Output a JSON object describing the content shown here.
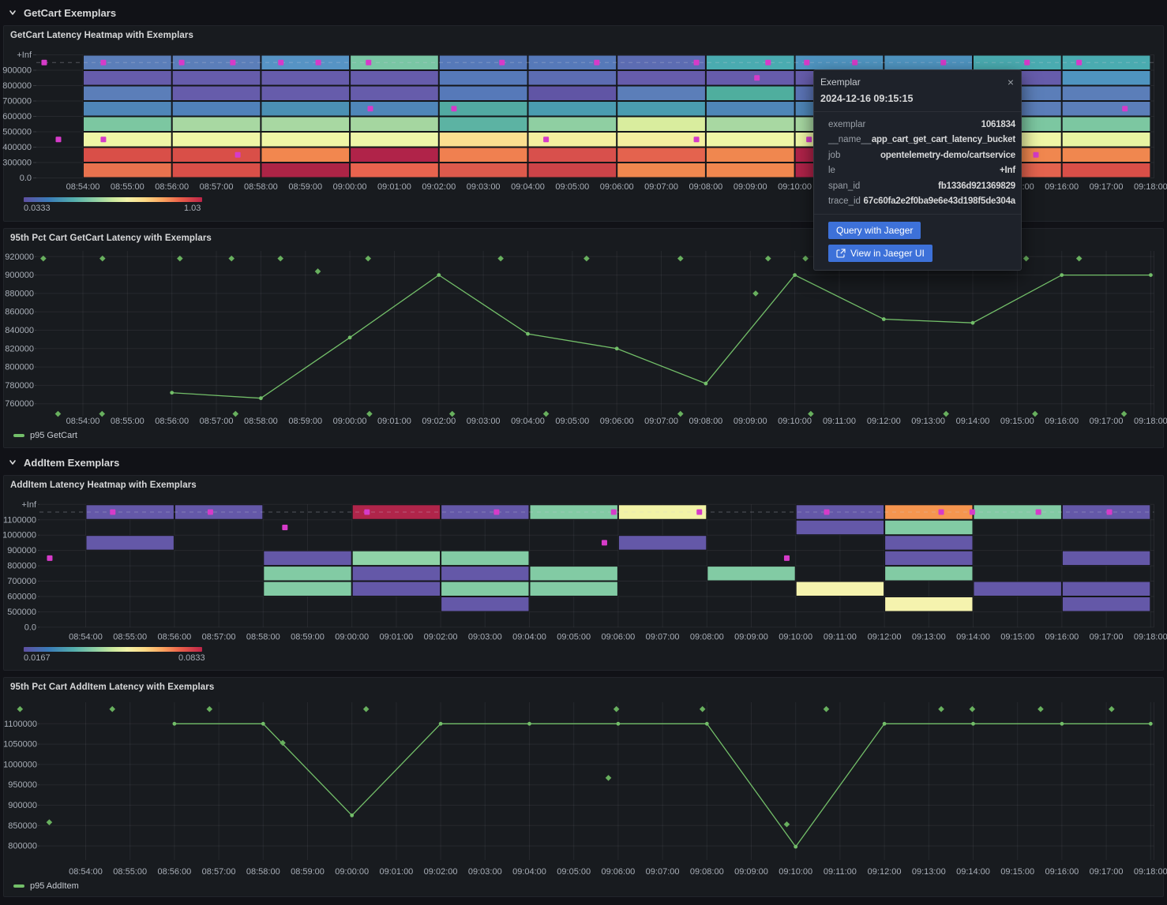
{
  "sections": [
    {
      "label": "GetCart Exemplars"
    },
    {
      "label": "AddItem Exemplars"
    }
  ],
  "panels": [
    {
      "title": "GetCart Latency Heatmap with Exemplars"
    },
    {
      "title": "95th Pct Cart GetCart Latency with Exemplars"
    },
    {
      "title": "AddItem Latency Heatmap with Exemplars"
    },
    {
      "title": "95th Pct Cart AddItem Latency with Exemplars"
    }
  ],
  "colors": {
    "accent_blue": "#3d71d9",
    "exemplar_magenta": "#d63bc9",
    "series_green": "#73bf69",
    "diamond_green": "#68b05e"
  },
  "tooltip": {
    "title": "Exemplar",
    "timestamp": "2024-12-16 09:15:15",
    "rows": [
      {
        "label": "exemplar",
        "value": "1061834"
      },
      {
        "label": "__name__",
        "value": "app_cart_get_cart_latency_bucket"
      },
      {
        "label": "job",
        "value": "opentelemetry-demo/cartservice"
      },
      {
        "label": "le",
        "value": "+Inf"
      },
      {
        "label": "span_id",
        "value": "fb1336d921369829"
      },
      {
        "label": "trace_id",
        "value": "67c60fa2e2f0ba9e6e43d198f5de304a"
      }
    ],
    "buttons": [
      {
        "label": "Query with Jaeger"
      },
      {
        "label": "View in Jaeger UI"
      }
    ]
  },
  "chart_data": [
    {
      "type": "heatmap",
      "title": "GetCart Latency Heatmap with Exemplars",
      "x_tick_labels": [
        "08:54:00",
        "08:55:00",
        "08:56:00",
        "08:57:00",
        "08:58:00",
        "08:59:00",
        "09:00:00",
        "09:01:00",
        "09:02:00",
        "09:03:00",
        "09:04:00",
        "09:05:00",
        "09:06:00",
        "09:07:00",
        "09:08:00",
        "09:09:00",
        "09:10:00",
        "09:11:00",
        "09:12:00",
        "09:13:00",
        "09:14:00",
        "09:15:00",
        "09:16:00",
        "09:17:00",
        "09:18:00"
      ],
      "y_tick_labels": [
        "0.0",
        "300000",
        "400000",
        "500000",
        "600000",
        "700000",
        "800000",
        "900000",
        "+Inf"
      ],
      "columns": [
        {
          "start_min": 0,
          "colors_top_to_bottom": [
            "#5b7eb9",
            "#665cab",
            "#5b7eb9",
            "#4f86b8",
            "#7cc7a1",
            "#eff6a6",
            "#d94f48",
            "#e8724e"
          ]
        },
        {
          "start_min": 2,
          "colors_top_to_bottom": [
            "#5b7eb9",
            "#665cab",
            "#665cab",
            "#5081ba",
            "#a8d8a2",
            "#eff6a6",
            "#d94f48",
            "#d94f48"
          ]
        },
        {
          "start_min": 4,
          "colors_top_to_bottom": [
            "#5693c4",
            "#665cab",
            "#665cab",
            "#4b90b4",
            "#a8d8a2",
            "#eff6a6",
            "#f2874f",
            "#ad2446"
          ]
        },
        {
          "start_min": 6,
          "colors_top_to_bottom": [
            "#79c6a4",
            "#665cab",
            "#665cab",
            "#4f86b8",
            "#a5d6a0",
            "#eef5a8",
            "#b02349",
            "#e8634e"
          ]
        },
        {
          "start_min": 8,
          "colors_top_to_bottom": [
            "#5679b9",
            "#5679b9",
            "#5679b9",
            "#52aaa2",
            "#5cb3a3",
            "#fbdf90",
            "#f08050",
            "#dd5a4c"
          ]
        },
        {
          "start_min": 10,
          "colors_top_to_bottom": [
            "#5679b9",
            "#5c6cb2",
            "#6055a5",
            "#4a9cb0",
            "#8fcfa2",
            "#f4ef9f",
            "#d8504c",
            "#cc4348"
          ]
        },
        {
          "start_min": 12,
          "colors_top_to_bottom": [
            "#5c6cb2",
            "#665cab",
            "#5b7eb9",
            "#4a9cb0",
            "#d9ed9e",
            "#f4ef9f",
            "#e4634e",
            "#f0874f"
          ]
        },
        {
          "start_min": 14,
          "colors_top_to_bottom": [
            "#4aabb0",
            "#665cab",
            "#4fae9e",
            "#4f86b8",
            "#a8d8a2",
            "#eff6a6",
            "#f0874f",
            "#f0874f"
          ]
        },
        {
          "start_min": 16,
          "colors_top_to_bottom": [
            "#4f94c0",
            "#665cab",
            "#5b74b6",
            "#4f86b8",
            "#a8d8a2",
            "#eff6a6",
            "#b02349",
            "#b02349"
          ]
        },
        {
          "start_min": 18,
          "colors_top_to_bottom": [
            "#4f94c0",
            "#665cab",
            "#5b74b6",
            "#4f86b8",
            "#a8d8a2",
            "#eff6a6",
            "#b02349",
            "#b02349"
          ]
        },
        {
          "start_min": 20,
          "colors_top_to_bottom": [
            "#4aabb0",
            "#665cab",
            "#5b7eb9",
            "#5b7eb9",
            "#7cc7a1",
            "#eff6a6",
            "#f0874f",
            "#e4634e"
          ]
        },
        {
          "start_min": 22,
          "colors_top_to_bottom": [
            "#4aabb0",
            "#4f94c0",
            "#5b7eb9",
            "#5b7eb9",
            "#7cc7a1",
            "#e8f4a2",
            "#f0874f",
            "#d94f48"
          ]
        }
      ],
      "exemplars": [
        {
          "row_from_top": 0,
          "minutes": [
            -0.87,
            0.46,
            2.22,
            3.37,
            4.45,
            5.29,
            6.42,
            9.42,
            11.55,
            13.79,
            15.4,
            16.27,
            17.35,
            19.34,
            21.22,
            22.39
          ]
        },
        {
          "row_from_top": 1,
          "minutes": [
            15.15
          ]
        },
        {
          "row_from_top": 3,
          "minutes": [
            6.46,
            8.34,
            23.42
          ]
        },
        {
          "row_from_top": 5,
          "minutes": [
            -0.55,
            0.46,
            10.41,
            13.79,
            16.32
          ]
        },
        {
          "row_from_top": 6,
          "minutes": [
            3.48,
            21.42
          ]
        }
      ],
      "colorbar": {
        "min_label": "0.0333",
        "max_label": "1.03"
      }
    },
    {
      "type": "line",
      "title": "95th Pct Cart GetCart Latency with Exemplars",
      "series": [
        {
          "name": "p95 GetCart",
          "x_minutes": [
            2,
            4,
            6,
            8,
            10,
            12,
            14,
            16,
            18,
            20,
            22,
            24
          ],
          "values": [
            772000,
            766000,
            832000,
            900000,
            836000,
            820000,
            782000,
            900000,
            852000,
            848000,
            900000,
            900000
          ]
        }
      ],
      "y_ticks": [
        760000,
        780000,
        800000,
        820000,
        840000,
        860000,
        880000,
        900000,
        920000
      ],
      "x_tick_labels": [
        "08:54:00",
        "08:55:00",
        "08:56:00",
        "08:57:00",
        "08:58:00",
        "08:59:00",
        "09:00:00",
        "09:01:00",
        "09:02:00",
        "09:03:00",
        "09:04:00",
        "09:05:00",
        "09:06:00",
        "09:07:00",
        "09:08:00",
        "09:09:00",
        "09:10:00",
        "09:11:00",
        "09:12:00",
        "09:13:00",
        "09:14:00",
        "09:15:00",
        "09:16:00",
        "09:17:00",
        "09:18:00"
      ],
      "exemplars": [
        [
          -0.89,
          918000
        ],
        [
          0.44,
          918000
        ],
        [
          2.18,
          918000
        ],
        [
          3.34,
          918000
        ],
        [
          4.44,
          918000
        ],
        [
          6.41,
          918000
        ],
        [
          9.39,
          918000
        ],
        [
          11.32,
          918000
        ],
        [
          13.43,
          918000
        ],
        [
          15.4,
          918000
        ],
        [
          16.24,
          918000
        ],
        [
          21.2,
          918000
        ],
        [
          22.39,
          918000
        ],
        [
          5.28,
          904000
        ],
        [
          15.12,
          880000
        ],
        [
          -0.56,
          749000
        ],
        [
          0.43,
          749000
        ],
        [
          3.43,
          749000
        ],
        [
          6.44,
          749000
        ],
        [
          8.3,
          749000
        ],
        [
          10.41,
          749000
        ],
        [
          13.43,
          749000
        ],
        [
          16.36,
          749000
        ],
        [
          19.4,
          749000
        ],
        [
          21.4,
          749000
        ],
        [
          23.4,
          749000
        ]
      ]
    },
    {
      "type": "heatmap",
      "title": "AddItem Latency Heatmap with Exemplars",
      "x_tick_labels": [
        "08:54:00",
        "08:55:00",
        "08:56:00",
        "08:57:00",
        "08:58:00",
        "08:59:00",
        "09:00:00",
        "09:01:00",
        "09:02:00",
        "09:03:00",
        "09:04:00",
        "09:05:00",
        "09:06:00",
        "09:07:00",
        "09:08:00",
        "09:09:00",
        "09:10:00",
        "09:11:00",
        "09:12:00",
        "09:13:00",
        "09:14:00",
        "09:15:00",
        "09:16:00",
        "09:17:00",
        "09:18:00"
      ],
      "y_tick_labels": [
        "0.0",
        "500000",
        "600000",
        "700000",
        "800000",
        "900000",
        "1000000",
        "1100000",
        "+Inf"
      ],
      "columns": [
        {
          "start_min": 0,
          "colors_top_to_bottom": [
            "#6458a8",
            null,
            "#6458a8",
            null,
            null,
            null,
            null,
            null
          ]
        },
        {
          "start_min": 2,
          "colors_top_to_bottom": [
            "#6458a8",
            null,
            null,
            null,
            null,
            null,
            null,
            null
          ]
        },
        {
          "start_min": 4,
          "colors_top_to_bottom": [
            null,
            null,
            null,
            "#6458a8",
            "#82cba4",
            "#82cba4",
            null,
            null
          ]
        },
        {
          "start_min": 6,
          "colors_top_to_bottom": [
            "#b0254a",
            null,
            null,
            "#8fd3a7",
            "#6458a8",
            "#6458a8",
            null,
            null
          ]
        },
        {
          "start_min": 8,
          "colors_top_to_bottom": [
            "#6458a8",
            null,
            null,
            "#82cba4",
            "#6458a8",
            "#82cba4",
            "#6458a8",
            null
          ]
        },
        {
          "start_min": 10,
          "colors_top_to_bottom": [
            "#82cba4",
            null,
            null,
            null,
            "#82cba4",
            "#82cba4",
            null,
            null
          ]
        },
        {
          "start_min": 12,
          "colors_top_to_bottom": [
            "#f2f3a6",
            null,
            "#6458a8",
            null,
            null,
            null,
            null,
            null
          ]
        },
        {
          "start_min": 14,
          "colors_top_to_bottom": [
            null,
            null,
            null,
            null,
            "#82cba4",
            null,
            null,
            null
          ]
        },
        {
          "start_min": 16,
          "colors_top_to_bottom": [
            "#6458a8",
            "#6458a8",
            null,
            null,
            null,
            "#f5f3ae",
            null,
            null
          ]
        },
        {
          "start_min": 18,
          "colors_top_to_bottom": [
            "#f5954f",
            "#82cba4",
            "#6458a8",
            "#6458a8",
            "#82cba4",
            null,
            "#f5f3ae",
            null
          ]
        },
        {
          "start_min": 20,
          "colors_top_to_bottom": [
            "#82cba4",
            null,
            null,
            null,
            null,
            "#6458a8",
            null,
            null
          ]
        },
        {
          "start_min": 22,
          "colors_top_to_bottom": [
            "#6458a8",
            null,
            null,
            "#6458a8",
            null,
            "#6458a8",
            "#6458a8",
            null
          ]
        }
      ],
      "exemplars": [
        {
          "row_from_top": 0,
          "minutes": [
            0.61,
            2.81,
            6.34,
            9.26,
            11.9,
            13.83,
            16.7,
            19.28,
            19.98,
            21.47,
            23.07
          ]
        },
        {
          "row_from_top": 1,
          "minutes": [
            4.49
          ]
        },
        {
          "row_from_top": 2,
          "minutes": [
            11.69
          ]
        },
        {
          "row_from_top": 3,
          "minutes": [
            -0.81,
            15.8
          ]
        }
      ],
      "colorbar": {
        "min_label": "0.0167",
        "max_label": "0.0833"
      }
    },
    {
      "type": "line",
      "title": "95th Pct Cart AddItem Latency with Exemplars",
      "series": [
        {
          "name": "p95 AddItem",
          "x_minutes": [
            2,
            4,
            6,
            8,
            10,
            12,
            14,
            16,
            18,
            20,
            22,
            24
          ],
          "values": [
            1100000,
            1100000,
            875000,
            1100000,
            1100000,
            1100000,
            1100000,
            798000,
            1100000,
            1100000,
            1100000,
            1100000
          ]
        }
      ],
      "y_ticks": [
        800000,
        850000,
        900000,
        950000,
        1000000,
        1050000,
        1100000
      ],
      "x_tick_labels": [
        "08:54:00",
        "08:55:00",
        "08:56:00",
        "08:57:00",
        "08:58:00",
        "08:59:00",
        "09:00:00",
        "09:01:00",
        "09:02:00",
        "09:03:00",
        "09:04:00",
        "09:05:00",
        "09:06:00",
        "09:07:00",
        "09:08:00",
        "09:09:00",
        "09:10:00",
        "09:11:00",
        "09:12:00",
        "09:13:00",
        "09:14:00",
        "09:15:00",
        "09:16:00",
        "09:17:00",
        "09:18:00"
      ],
      "exemplars": [
        [
          -1.48,
          1136000
        ],
        [
          0.6,
          1136000
        ],
        [
          2.79,
          1136000
        ],
        [
          6.32,
          1136000
        ],
        [
          11.96,
          1136000
        ],
        [
          13.9,
          1136000
        ],
        [
          16.69,
          1136000
        ],
        [
          19.28,
          1136000
        ],
        [
          19.98,
          1136000
        ],
        [
          21.52,
          1136000
        ],
        [
          23.12,
          1136000
        ],
        [
          -0.82,
          858000
        ],
        [
          4.44,
          1053000
        ],
        [
          11.78,
          967000
        ],
        [
          15.8,
          853000
        ]
      ]
    }
  ]
}
